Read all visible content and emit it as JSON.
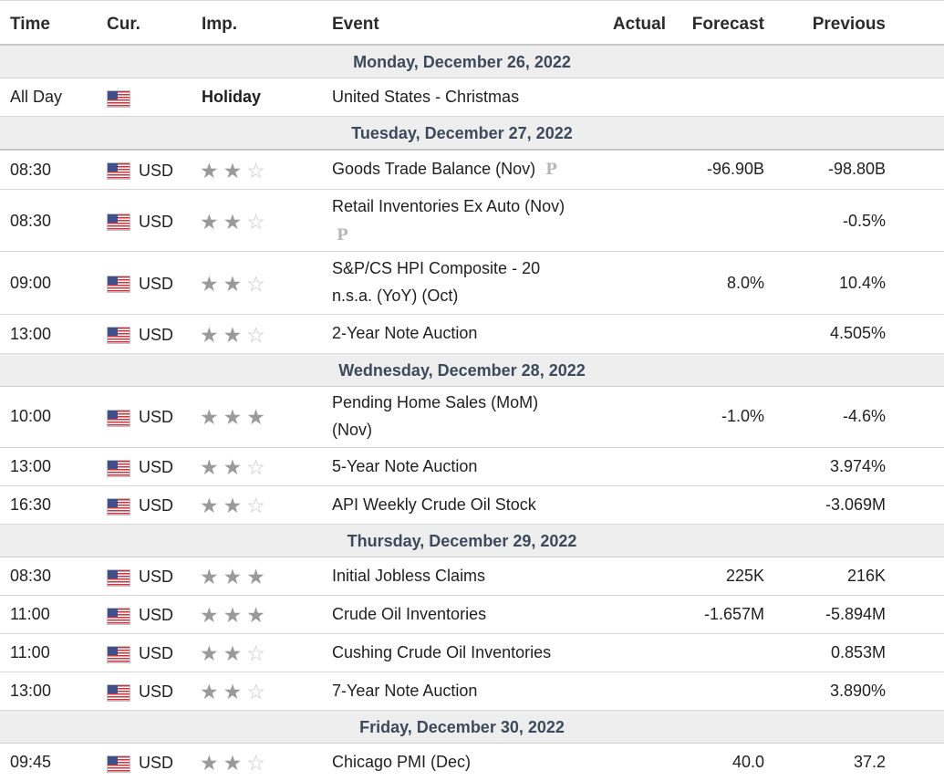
{
  "columns": {
    "time": "Time",
    "currency": "Cur.",
    "importance": "Imp.",
    "event": "Event",
    "actual": "Actual",
    "forecast": "Forecast",
    "previous": "Previous"
  },
  "prelim_marker": "P",
  "star_icons": {
    "full": "★",
    "empty": "☆"
  },
  "flag_icon": "us-flag-icon",
  "days": [
    {
      "label": "Monday, December 26, 2022"
    },
    {
      "label": "Tuesday, December 27, 2022"
    },
    {
      "label": "Wednesday, December 28, 2022"
    },
    {
      "label": "Thursday, December 29, 2022"
    },
    {
      "label": "Friday, December 30, 2022"
    }
  ],
  "rows": [
    {
      "time": "All Day",
      "currency": "",
      "importance_text": "Holiday",
      "event": "United States - Christmas",
      "actual": "",
      "forecast": "",
      "previous": ""
    },
    {
      "time": "08:30",
      "currency": "USD",
      "stars": 2,
      "event": "Goods Trade Balance (Nov)",
      "prelim": true,
      "actual": "",
      "forecast": "-96.90B",
      "previous": "-98.80B"
    },
    {
      "time": "08:30",
      "currency": "USD",
      "stars": 2,
      "event_line1": "Retail Inventories Ex Auto (Nov)",
      "prelim": true,
      "actual": "",
      "forecast": "",
      "previous": "-0.5%"
    },
    {
      "time": "09:00",
      "currency": "USD",
      "stars": 2,
      "event_line1": "S&P/CS HPI Composite - 20",
      "event_line2": "n.s.a. (YoY) (Oct)",
      "actual": "",
      "forecast": "8.0%",
      "previous": "10.4%"
    },
    {
      "time": "13:00",
      "currency": "USD",
      "stars": 2,
      "event": "2-Year Note Auction",
      "actual": "",
      "forecast": "",
      "previous": "4.505%"
    },
    {
      "time": "10:00",
      "currency": "USD",
      "stars": 3,
      "event_line1": "Pending Home Sales (MoM)",
      "event_line2": "(Nov)",
      "actual": "",
      "forecast": "-1.0%",
      "previous": "-4.6%"
    },
    {
      "time": "13:00",
      "currency": "USD",
      "stars": 2,
      "event": "5-Year Note Auction",
      "actual": "",
      "forecast": "",
      "previous": "3.974%"
    },
    {
      "time": "16:30",
      "currency": "USD",
      "stars": 2,
      "event": "API Weekly Crude Oil Stock",
      "actual": "",
      "forecast": "",
      "previous": "-3.069M"
    },
    {
      "time": "08:30",
      "currency": "USD",
      "stars": 3,
      "event": "Initial Jobless Claims",
      "actual": "",
      "forecast": "225K",
      "previous": "216K"
    },
    {
      "time": "11:00",
      "currency": "USD",
      "stars": 3,
      "event": "Crude Oil Inventories",
      "actual": "",
      "forecast": "-1.657M",
      "previous": "-5.894M"
    },
    {
      "time": "11:00",
      "currency": "USD",
      "stars": 2,
      "event": "Cushing Crude Oil Inventories",
      "actual": "",
      "forecast": "",
      "previous": "0.853M"
    },
    {
      "time": "13:00",
      "currency": "USD",
      "stars": 2,
      "event": "7-Year Note Auction",
      "actual": "",
      "forecast": "",
      "previous": "3.890%"
    },
    {
      "time": "09:45",
      "currency": "USD",
      "stars": 2,
      "event": "Chicago PMI (Dec)",
      "actual": "",
      "forecast": "40.0",
      "previous": "37.2"
    }
  ]
}
